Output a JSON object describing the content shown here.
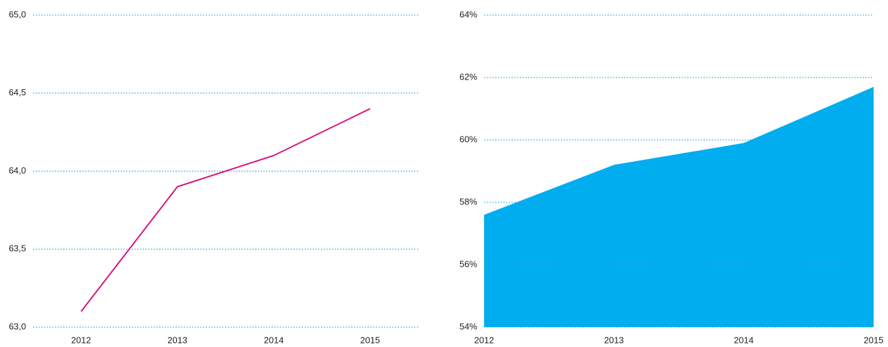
{
  "chart_data": [
    {
      "type": "line",
      "categories": [
        "2012",
        "2013",
        "2014",
        "2015"
      ],
      "values": [
        63.1,
        63.9,
        64.1,
        64.4
      ],
      "color": "#d6127a",
      "ylim": [
        63.0,
        65.0
      ],
      "yticks": [
        {
          "value": 63.0,
          "label": "63,0"
        },
        {
          "value": 63.5,
          "label": "63,5"
        },
        {
          "value": 64.0,
          "label": "64,0"
        },
        {
          "value": 64.5,
          "label": "64,5"
        },
        {
          "value": 65.0,
          "label": "65,0"
        }
      ],
      "grid": true
    },
    {
      "type": "area",
      "categories": [
        "2012",
        "2013",
        "2014",
        "2015"
      ],
      "values": [
        57.6,
        59.2,
        59.9,
        61.7
      ],
      "color": "#00adef",
      "ylim": [
        54,
        64
      ],
      "yticks": [
        {
          "value": 54,
          "label": "54%"
        },
        {
          "value": 56,
          "label": "56%"
        },
        {
          "value": 58,
          "label": "58%"
        },
        {
          "value": 60,
          "label": "60%"
        },
        {
          "value": 62,
          "label": "62%"
        },
        {
          "value": 64,
          "label": "64%"
        }
      ],
      "grid": true
    }
  ]
}
